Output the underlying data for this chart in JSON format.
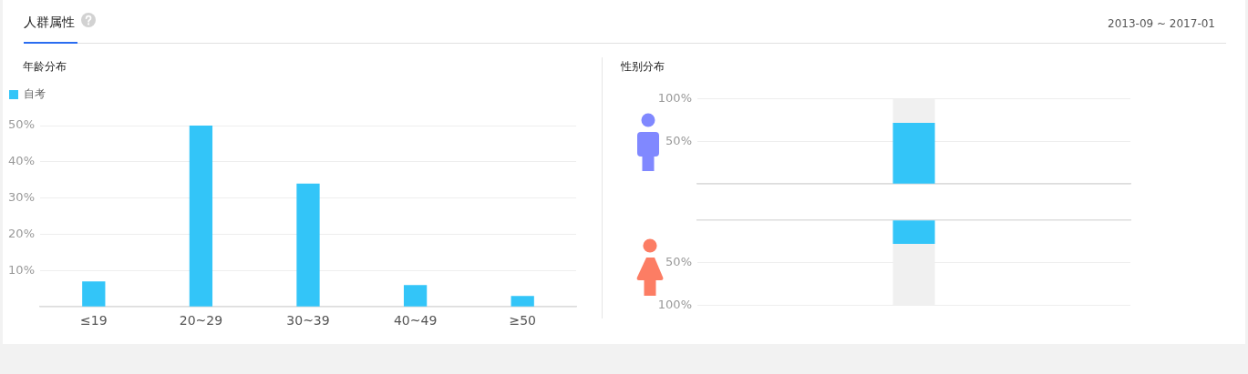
{
  "chart_data": [
    {
      "type": "other",
      "title": "人群属性",
      "annotations": [
        "2013-09 ~ 2017-01"
      ]
    },
    {
      "type": "bar",
      "title": "年龄分布",
      "categories": [
        "≤19",
        "20~29",
        "30~39",
        "40~49",
        "≥50"
      ],
      "series": [
        {
          "name": "自考",
          "color": "#33c5f8",
          "values": [
            7,
            50,
            34,
            6,
            3
          ]
        }
      ],
      "ylim": [
        0,
        50
      ],
      "yticks": [
        {
          "value": 0,
          "label": null
        },
        {
          "value": 10,
          "label": "10%"
        },
        {
          "value": 20,
          "label": "20%"
        },
        {
          "value": 30,
          "label": "30%"
        },
        {
          "value": 40,
          "label": "40%"
        },
        {
          "value": 50,
          "label": "50%"
        }
      ],
      "grid": "y",
      "legend": "top left"
    },
    {
      "type": "bar",
      "title": "性别分布",
      "categories": [
        null
      ],
      "stacked": true,
      "series": [
        {
          "color": "#33c5f8",
          "values": [
            72
          ]
        },
        {
          "color": "#f0f0f0",
          "values": [
            28
          ]
        }
      ],
      "ylim": [
        0,
        100
      ],
      "yticks": [
        {
          "value": 0,
          "label": null
        },
        {
          "value": 50,
          "label": "50%"
        },
        {
          "value": 100,
          "label": "100%"
        }
      ],
      "grid": "y",
      "tick_labels": "y"
    },
    {
      "type": "bar",
      "categories": [
        null
      ],
      "stacked": true,
      "series": [
        {
          "color": "#33c5f8",
          "values": [
            28
          ]
        },
        {
          "color": "#f0f0f0",
          "values": [
            72
          ]
        }
      ],
      "ylim": [
        100,
        0
      ],
      "yticks": [
        {
          "value": 0,
          "label": null
        },
        {
          "value": 50,
          "label": "50%"
        },
        {
          "value": 100,
          "label": "100%"
        }
      ],
      "grid": "y",
      "tick_labels": "y"
    }
  ]
}
